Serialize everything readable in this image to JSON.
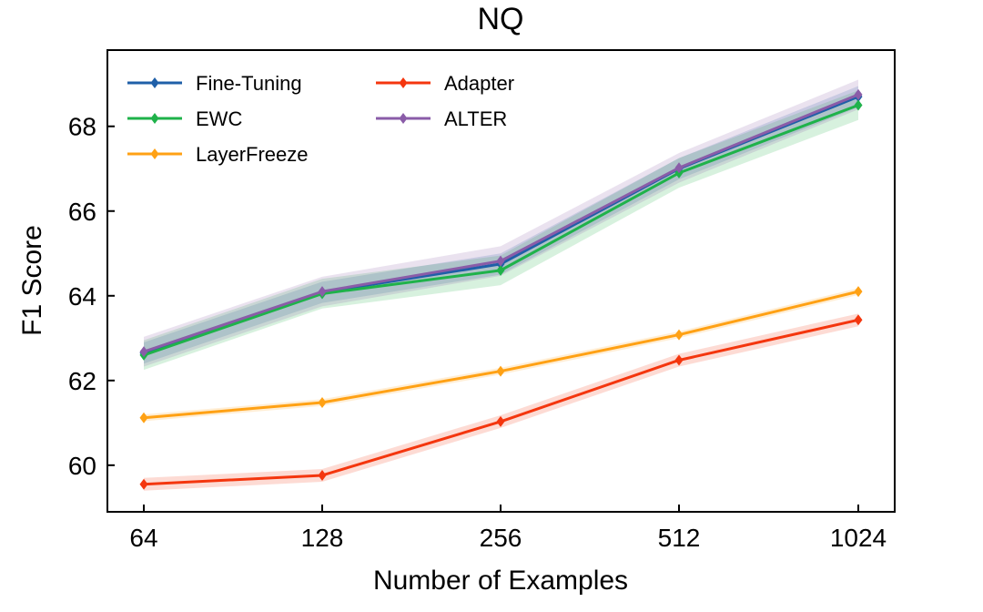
{
  "chart_data": {
    "type": "line",
    "title": "NQ",
    "xlabel": "Number of Examples",
    "ylabel": "F1 Score",
    "categories": [
      "64",
      "128",
      "256",
      "512",
      "1024"
    ],
    "ylim": [
      58.9,
      69.8
    ],
    "yticks": [
      60,
      62,
      64,
      66,
      68
    ],
    "ytick_labels": [
      "60",
      "62",
      "64",
      "66",
      "68"
    ],
    "legend_position": "upper-left",
    "series": [
      {
        "name": "Fine-Tuning",
        "color": "#1f5fa8",
        "values": [
          62.65,
          64.08,
          64.75,
          67.0,
          68.7
        ],
        "band": 0.25
      },
      {
        "name": "EWC",
        "color": "#1fb24a",
        "values": [
          62.6,
          64.05,
          64.6,
          66.9,
          68.5
        ],
        "band": 0.35
      },
      {
        "name": "LayerFreeze",
        "color": "#ffa114",
        "values": [
          61.12,
          61.48,
          62.22,
          63.08,
          64.1
        ],
        "band": 0.08
      },
      {
        "name": "Adapter",
        "color": "#f4360e",
        "values": [
          59.55,
          59.76,
          61.03,
          62.48,
          63.43
        ],
        "band": 0.15
      },
      {
        "name": "ALTER",
        "color": "#8a5ca8",
        "values": [
          62.68,
          64.1,
          64.82,
          67.02,
          68.75
        ],
        "band": 0.35
      }
    ]
  }
}
